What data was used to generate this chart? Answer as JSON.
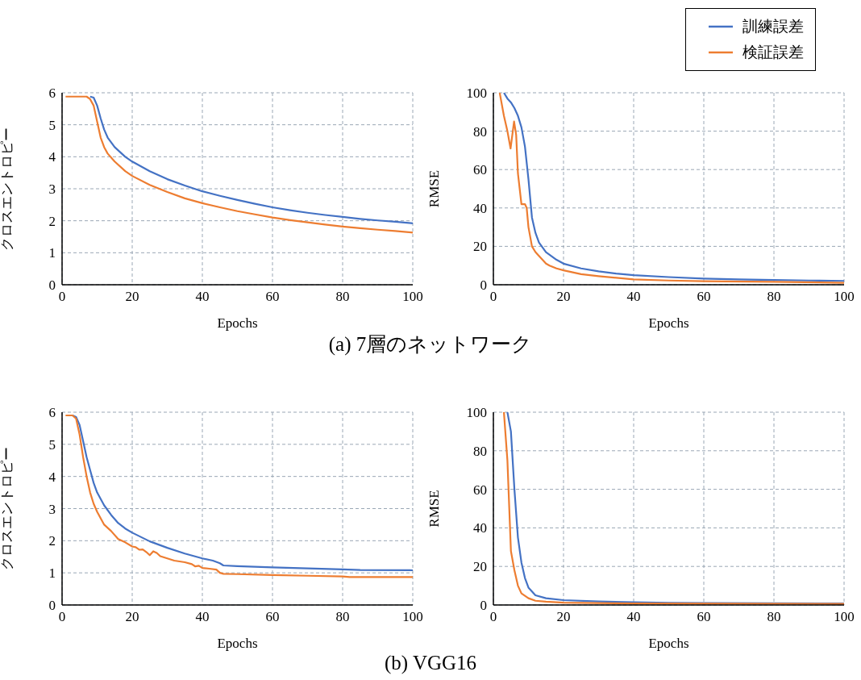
{
  "chart_data": [
    {
      "type": "line",
      "xlabel": "Epochs",
      "ylabel": "クロスエントロピー",
      "xlim": [
        0,
        100
      ],
      "xticks": [
        0,
        20,
        40,
        60,
        80,
        100
      ],
      "ylim": [
        0,
        6
      ],
      "yticks": [
        0,
        1,
        2,
        3,
        4,
        5,
        6
      ],
      "grid": true,
      "annotations": [
        "(a) 7層のネットワーク"
      ],
      "series": [
        {
          "color": "#4472c4",
          "x": [
            8,
            9,
            10,
            11,
            12,
            13,
            15,
            18,
            20,
            25,
            30,
            35,
            40,
            45,
            50,
            55,
            60,
            65,
            70,
            75,
            80,
            85,
            90,
            95,
            100
          ],
          "values": [
            5.88,
            5.85,
            5.6,
            5.2,
            4.85,
            4.6,
            4.3,
            4.0,
            3.85,
            3.55,
            3.3,
            3.1,
            2.92,
            2.78,
            2.65,
            2.53,
            2.42,
            2.33,
            2.25,
            2.18,
            2.12,
            2.06,
            2.01,
            1.97,
            1.92
          ]
        },
        {
          "color": "#ed7d31",
          "x": [
            1,
            3,
            5,
            7,
            8,
            9,
            10,
            11,
            12,
            13,
            15,
            18,
            20,
            25,
            30,
            35,
            40,
            45,
            50,
            55,
            60,
            65,
            70,
            75,
            80,
            85,
            90,
            95,
            100
          ],
          "values": [
            5.88,
            5.88,
            5.88,
            5.88,
            5.8,
            5.6,
            5.1,
            4.6,
            4.3,
            4.1,
            3.85,
            3.55,
            3.4,
            3.12,
            2.9,
            2.7,
            2.55,
            2.42,
            2.3,
            2.2,
            2.1,
            2.02,
            1.95,
            1.88,
            1.82,
            1.77,
            1.72,
            1.68,
            1.63
          ]
        }
      ]
    },
    {
      "type": "line",
      "xlabel": "Epochs",
      "ylabel": "RMSE",
      "xlim": [
        0,
        100
      ],
      "xticks": [
        0,
        20,
        40,
        60,
        80,
        100
      ],
      "ylim": [
        0,
        100
      ],
      "yticks": [
        0,
        20,
        40,
        60,
        80,
        100
      ],
      "grid": true,
      "legend": "top right",
      "series": [
        {
          "name": "訓練誤差",
          "color": "#4472c4",
          "x": [
            3,
            4,
            5,
            6,
            7,
            8,
            9,
            10,
            11,
            12,
            13,
            15,
            18,
            20,
            25,
            30,
            35,
            40,
            50,
            60,
            70,
            80,
            90,
            100
          ],
          "values": [
            100,
            97,
            95,
            92,
            88,
            82,
            72,
            55,
            35,
            27,
            22,
            17,
            13,
            11,
            8.5,
            7,
            5.8,
            5,
            4,
            3.2,
            2.8,
            2.5,
            2.2,
            2
          ]
        },
        {
          "name": "検証誤差",
          "color": "#ed7d31",
          "x": [
            1.8,
            3,
            4,
            4.9,
            5.9,
            6.5,
            7,
            8,
            9,
            9.5,
            10,
            11,
            12,
            13,
            15,
            16,
            18,
            20,
            25,
            30,
            40,
            50,
            60,
            80,
            100
          ],
          "values": [
            100,
            88,
            80,
            71,
            85,
            78,
            58,
            42,
            42,
            40,
            30,
            20,
            17,
            15,
            11,
            10,
            8.5,
            7.5,
            5.5,
            4.5,
            2.8,
            2.2,
            1.8,
            1.5,
            1
          ]
        }
      ]
    },
    {
      "type": "line",
      "xlabel": "Epochs",
      "ylabel": "クロスエントロピー",
      "xlim": [
        0,
        100
      ],
      "xticks": [
        0,
        20,
        40,
        60,
        80,
        100
      ],
      "ylim": [
        0,
        6
      ],
      "yticks": [
        0,
        1,
        2,
        3,
        4,
        5,
        6
      ],
      "grid": true,
      "annotations": [
        "(b) VGG16"
      ],
      "series": [
        {
          "color": "#4472c4",
          "x": [
            3,
            4,
            5,
            6,
            7,
            8,
            9,
            10,
            12,
            14,
            16,
            18,
            20,
            25,
            30,
            35,
            40,
            43,
            45,
            46,
            50,
            60,
            70,
            80,
            85,
            100
          ],
          "values": [
            5.9,
            5.85,
            5.6,
            5.1,
            4.6,
            4.2,
            3.8,
            3.5,
            3.1,
            2.8,
            2.55,
            2.38,
            2.25,
            1.98,
            1.78,
            1.6,
            1.45,
            1.38,
            1.3,
            1.23,
            1.21,
            1.17,
            1.14,
            1.11,
            1.09,
            1.08
          ]
        },
        {
          "color": "#ed7d31",
          "x": [
            1,
            3,
            4,
            5,
            6,
            7,
            8,
            9,
            10,
            12,
            14,
            16,
            18,
            20,
            21,
            22,
            23,
            24,
            25,
            26,
            27,
            28,
            30,
            32,
            35,
            37,
            38,
            39,
            40,
            42,
            44,
            45,
            46,
            50,
            60,
            70,
            80,
            82,
            100
          ],
          "values": [
            5.9,
            5.9,
            5.8,
            5.3,
            4.6,
            4.0,
            3.5,
            3.15,
            2.9,
            2.5,
            2.3,
            2.05,
            1.95,
            1.82,
            1.8,
            1.72,
            1.73,
            1.65,
            1.55,
            1.67,
            1.62,
            1.52,
            1.45,
            1.38,
            1.33,
            1.27,
            1.2,
            1.22,
            1.15,
            1.13,
            1.1,
            1.0,
            0.97,
            0.96,
            0.93,
            0.91,
            0.89,
            0.87,
            0.87
          ]
        }
      ]
    },
    {
      "type": "line",
      "xlabel": "Epochs",
      "ylabel": "RMSE",
      "xlim": [
        0,
        100
      ],
      "xticks": [
        0,
        20,
        40,
        60,
        80,
        100
      ],
      "ylim": [
        0,
        100
      ],
      "yticks": [
        0,
        20,
        40,
        60,
        80,
        100
      ],
      "grid": true,
      "series": [
        {
          "color": "#4472c4",
          "x": [
            4,
            5,
            6,
            7,
            8,
            9,
            10,
            12,
            15,
            20,
            30,
            40,
            50,
            60,
            100
          ],
          "values": [
            100,
            90,
            60,
            35,
            22,
            14,
            9,
            5,
            3.5,
            2.5,
            1.8,
            1.4,
            1.1,
            1,
            0.8
          ]
        },
        {
          "color": "#ed7d31",
          "x": [
            3,
            4,
            5,
            6,
            7,
            8,
            10,
            12,
            15,
            20,
            40,
            100
          ],
          "values": [
            100,
            75,
            28,
            18,
            10,
            6,
            3.5,
            2.2,
            1.7,
            1.2,
            0.8,
            0.6
          ]
        }
      ]
    }
  ]
}
